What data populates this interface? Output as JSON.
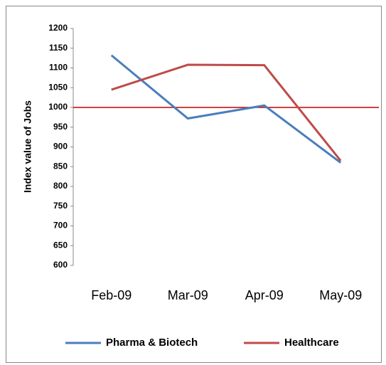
{
  "chart_data": {
    "type": "line",
    "y_label": "Index value of Jobs",
    "categories": [
      "Feb-09",
      "Mar-09",
      "Apr-09",
      "May-09"
    ],
    "series": [
      {
        "name": "Pharma & Biotech",
        "color": "#4a7ebb",
        "values": [
          1132,
          972,
          1005,
          860
        ]
      },
      {
        "name": "Healthcare",
        "color": "#be4b48",
        "values": [
          1045,
          1108,
          1107,
          865
        ]
      }
    ],
    "hline": {
      "value": 1000,
      "color": "#c00000"
    },
    "ylim": [
      600,
      1200
    ],
    "yticks": [
      600,
      650,
      700,
      750,
      800,
      850,
      900,
      950,
      1000,
      1050,
      1100,
      1150,
      1200
    ],
    "legend": "bottom"
  }
}
